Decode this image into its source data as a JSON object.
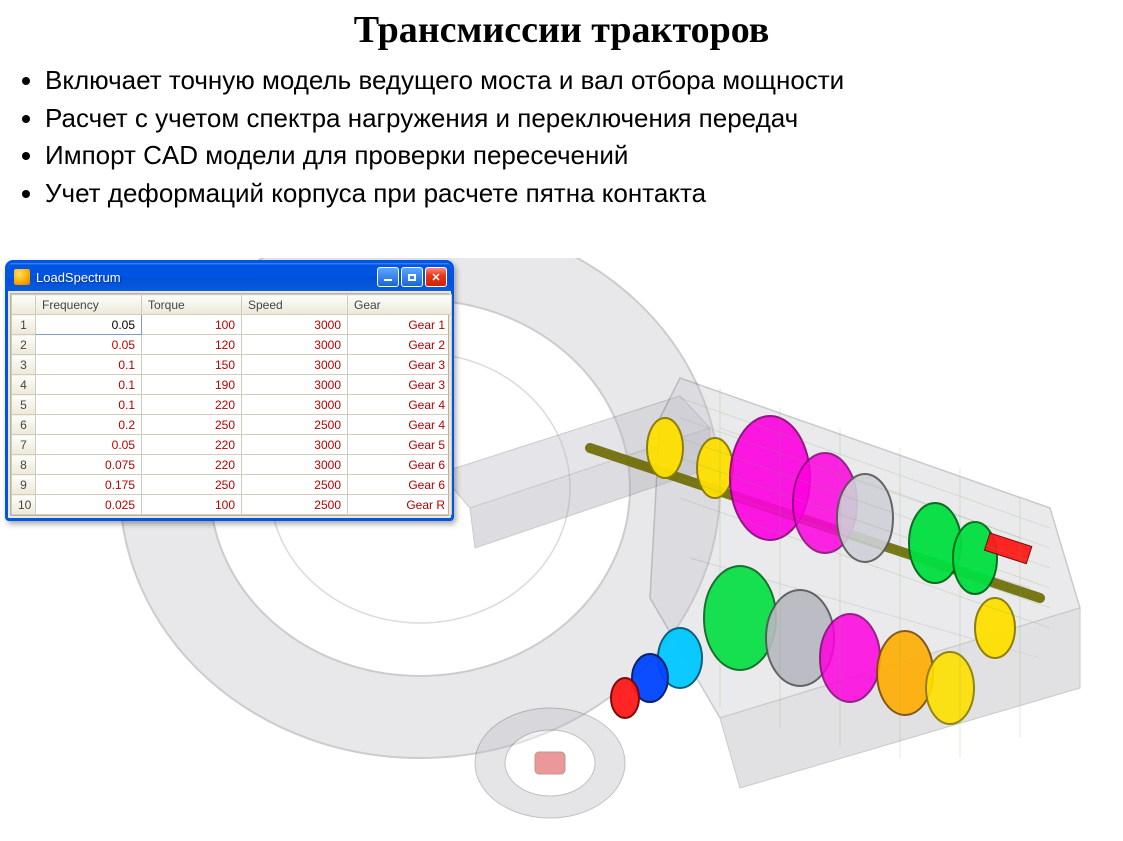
{
  "title": "Трансмиссии тракторов",
  "bullets": [
    "Включает точную модель ведущего моста и вал отбора мощности",
    "Расчет с учетом спектра нагружения и переключения передач",
    "Импорт CAD модели для проверки пересечений",
    "Учет деформаций корпуса при расчете пятна контакта"
  ],
  "window": {
    "title": "LoadSpectrum",
    "titlebar_gradient": [
      "#3f8cf3",
      "#0054e3"
    ],
    "close_color": "#e73914",
    "columns": [
      "Frequency",
      "Torque",
      "Speed",
      "Gear"
    ],
    "header_bg": "#ece9d8",
    "cell_border": "#d0cdbd",
    "value_color": "#b80000",
    "rows": [
      {
        "n": "1",
        "freq": "0.05",
        "torque": "100",
        "speed": "3000",
        "gear": "Gear 1",
        "editing": true
      },
      {
        "n": "2",
        "freq": "0.05",
        "torque": "120",
        "speed": "3000",
        "gear": "Gear 2"
      },
      {
        "n": "3",
        "freq": "0.1",
        "torque": "150",
        "speed": "3000",
        "gear": "Gear 3"
      },
      {
        "n": "4",
        "freq": "0.1",
        "torque": "190",
        "speed": "3000",
        "gear": "Gear 3"
      },
      {
        "n": "5",
        "freq": "0.1",
        "torque": "220",
        "speed": "3000",
        "gear": "Gear 4"
      },
      {
        "n": "6",
        "freq": "0.2",
        "torque": "250",
        "speed": "2500",
        "gear": "Gear 4"
      },
      {
        "n": "7",
        "freq": "0.05",
        "torque": "220",
        "speed": "3000",
        "gear": "Gear 5"
      },
      {
        "n": "8",
        "freq": "0.075",
        "torque": "220",
        "speed": "3000",
        "gear": "Gear 6"
      },
      {
        "n": "9",
        "freq": "0.175",
        "torque": "250",
        "speed": "2500",
        "gear": "Gear 6"
      },
      {
        "n": "10",
        "freq": "0.025",
        "torque": "100",
        "speed": "2500",
        "gear": "Gear R"
      }
    ]
  },
  "cad": {
    "type": "3d-illustration",
    "description": "transparent tractor transmission CAD model",
    "housing_color": "#c8c8cf",
    "housing_opacity": 0.35,
    "wheel_color": "#b5b5bb",
    "gear_colors": [
      "#ff00ff",
      "#00ff00",
      "#ffff00",
      "#ff0000",
      "#00c8ff",
      "#ff8000",
      "#0044ff"
    ]
  }
}
